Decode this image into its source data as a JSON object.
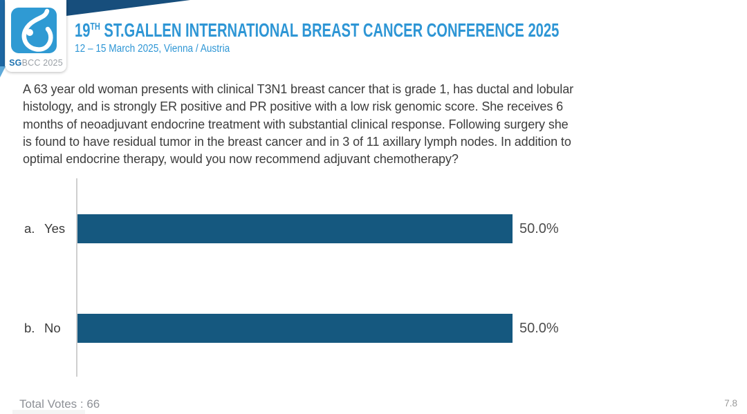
{
  "header": {
    "logo": {
      "caption_bold": "SG",
      "caption_rest": "BCC 2025"
    },
    "title": {
      "num": "19",
      "sup": "TH",
      "rest": " ST.GALLEN INTERNATIONAL BREAST CANCER CONFERENCE 2025"
    },
    "subtitle": "12 – 15 March 2025, Vienna / Austria"
  },
  "question": {
    "lines": [
      "A 63 year old woman presents with clinical T3N1 breast cancer that is grade 1, has ductal and lobular",
      "histology, and is strongly ER positive and PR positive with a low risk genomic score. She receives 6",
      "months of neoadjuvant endocrine treatment with substantial clinical response. Following surgery she",
      "is found to have residual tumor in the breast cancer and in 3 of 11 axillary lymph nodes. In addition to",
      "optimal endocrine therapy, would you now recommend adjuvant chemotherapy?"
    ]
  },
  "chart_data": {
    "type": "bar",
    "orientation": "horizontal",
    "categories": [
      "a. Yes",
      "b. No"
    ],
    "values": [
      50.0,
      50.0
    ],
    "value_labels": [
      "50.0%",
      "50.0%"
    ],
    "total_votes": 66,
    "title": "",
    "xlabel": "",
    "ylabel": "",
    "xlim": [
      0,
      100
    ],
    "grid": false,
    "legend": "none",
    "axis_style": "single vertical baseline, no ticks or tick labels",
    "bar_color": "#15587f"
  },
  "options": [
    {
      "prefix": "a.",
      "label": "Yes",
      "pct": "50.0%"
    },
    {
      "prefix": "b.",
      "label": "No",
      "pct": "50.0%"
    }
  ],
  "footer": {
    "total_votes": "Total Votes : 66",
    "slide_number": "7.8"
  },
  "colors": {
    "accent_blue": "#2e96d5",
    "navy_band": "#174e7c",
    "left_strip_blue": "#1d66a2",
    "logo_blue": "#2f9ad3",
    "bar_blue": "#15587f",
    "text_gray": "#3c3c3c",
    "footer_gray": "#8d9096"
  }
}
